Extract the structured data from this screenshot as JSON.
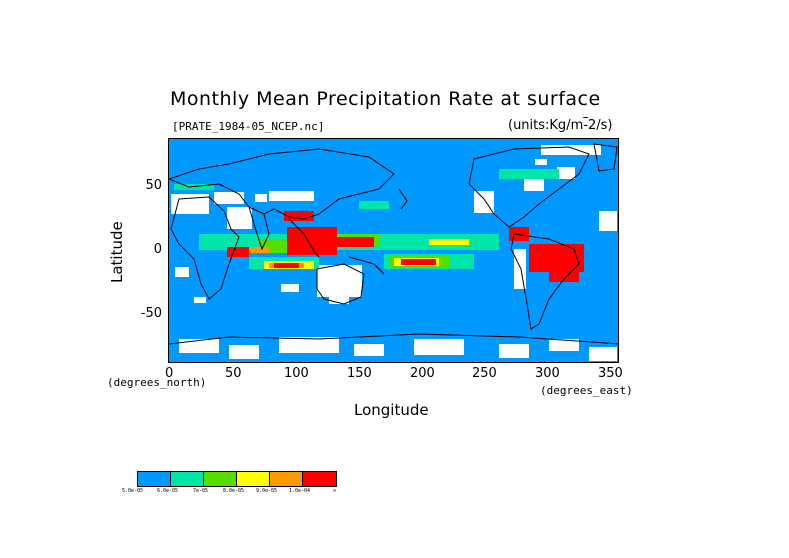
{
  "title": "Monthly Mean Precipitation Rate at surface",
  "file_label": "[PRATE_1984-05_NCEP.nc]",
  "units_label": "(units:Kg/m^-2/s)",
  "y_axis_label": "Latitude",
  "x_axis_label": "Longitude",
  "x_unit_left": "(degrees_north)",
  "x_unit_right": "(degrees_east)",
  "y_ticks": [
    "50",
    "0",
    "-50"
  ],
  "x_ticks": [
    "0",
    "50",
    "100",
    "150",
    "200",
    "250",
    "300",
    "350"
  ],
  "legend": {
    "colors": [
      "#0099ff",
      "#00e6a8",
      "#55dd00",
      "#ffff00",
      "#ff9900",
      "#ff0000"
    ],
    "tick_labels": [
      "5.0e-05",
      "6.0e-05",
      "7e-05",
      "8.0e-05",
      "9.0e-05",
      "1.0e-04",
      "∞"
    ]
  },
  "map": {
    "land_line_color": "#000000",
    "no_data_color": "#ffffff",
    "ocean_color": "#0099ff",
    "wet_color": "#ff0000",
    "lon_range": [
      0,
      360
    ],
    "lat_range": [
      -90,
      90
    ]
  }
}
